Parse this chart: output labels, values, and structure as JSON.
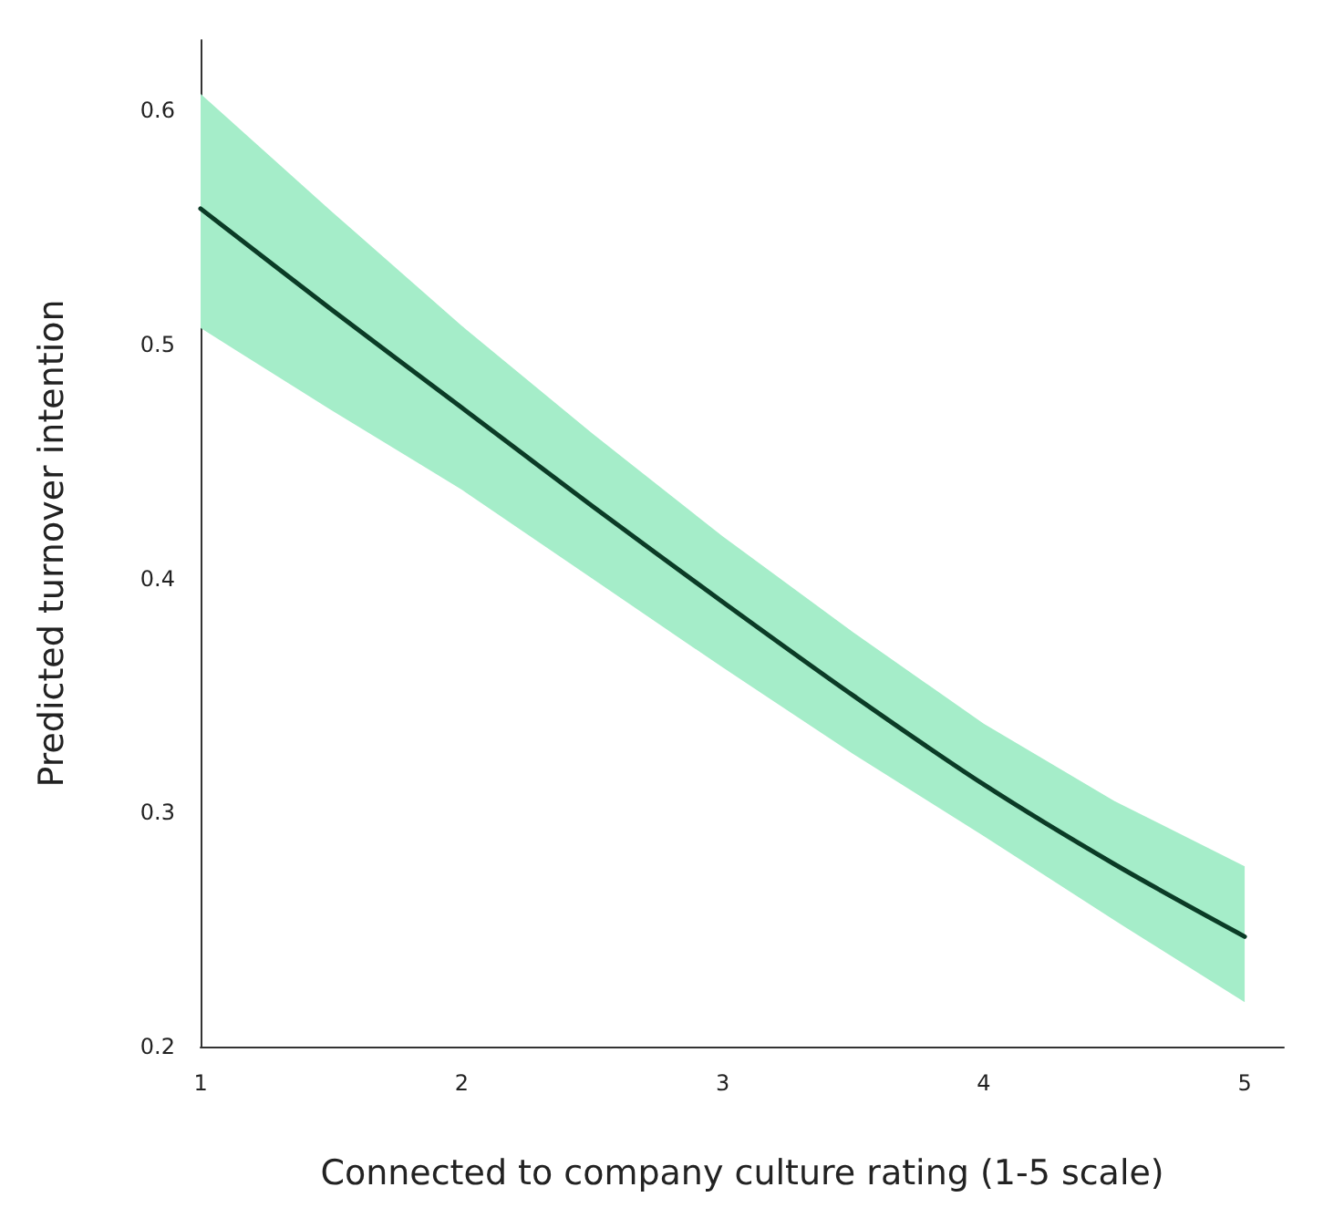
{
  "chart_data": {
    "type": "line",
    "xlabel": "Connected to company culture rating (1-5 scale)",
    "ylabel": "Predicted turnover intention",
    "x": [
      1,
      1.5,
      2,
      2.5,
      3,
      3.5,
      4,
      4.5,
      5
    ],
    "series": [
      {
        "color": "#0b3b26",
        "values": [
          0.558,
          0.515,
          0.473,
          0.431,
          0.39,
          0.35,
          0.312,
          0.278,
          0.247
        ],
        "lower": [
          0.507,
          0.472,
          0.438,
          0.4,
          0.362,
          0.325,
          0.29,
          0.254,
          0.219
        ],
        "upper": [
          0.607,
          0.557,
          0.508,
          0.462,
          0.418,
          0.377,
          0.338,
          0.305,
          0.277
        ]
      }
    ],
    "xlim": [
      1,
      5.15
    ],
    "xticks": [
      1,
      2,
      3,
      4,
      5
    ],
    "ylim": [
      0.2,
      0.63
    ],
    "yticks": [
      0.2,
      0.3,
      0.4,
      0.5,
      0.6
    ],
    "grid": false,
    "marker": "none",
    "line_style": "solid"
  }
}
